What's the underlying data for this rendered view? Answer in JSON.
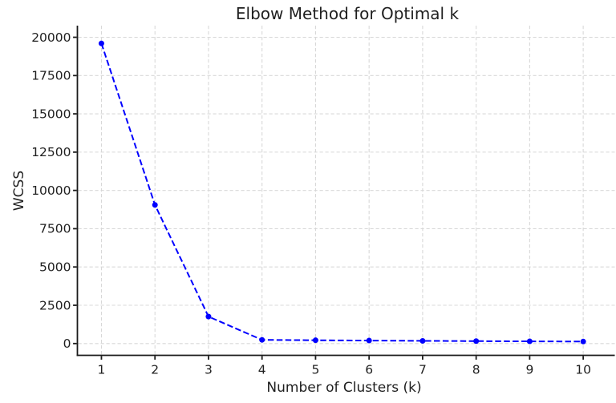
{
  "chart_data": {
    "type": "line",
    "title": "Elbow Method for Optimal k",
    "xlabel": "Number of Clusters (k)",
    "ylabel": "WCSS",
    "series_name": "WCSS",
    "x": [
      1,
      2,
      3,
      4,
      5,
      6,
      7,
      8,
      9,
      10
    ],
    "y": [
      19600,
      9050,
      1760,
      240,
      215,
      195,
      175,
      158,
      143,
      130
    ],
    "xlim": [
      0.551,
      10.59
    ],
    "ylim": [
      -770,
      20760
    ],
    "x_ticks": {
      "values": [
        1,
        2,
        3,
        4,
        5,
        6,
        7,
        8,
        9,
        10
      ],
      "labels": [
        "1",
        "2",
        "3",
        "4",
        "5",
        "6",
        "7",
        "8",
        "9",
        "10"
      ]
    },
    "y_ticks": {
      "values": [
        0,
        2500,
        5000,
        7500,
        10000,
        12500,
        15000,
        17500,
        20000
      ],
      "labels": [
        "0",
        "2500",
        "5000",
        "7500",
        "10000",
        "12500",
        "15000",
        "17500",
        "20000"
      ]
    },
    "grid": true,
    "legend": false,
    "line_style": "dashed",
    "marker": "circle",
    "style": {
      "line_color": "#0000ff",
      "marker_color": "#0000ff",
      "grid_color": "#d8d8d8",
      "spine_color": "#1a1a1a",
      "text_color": "#1f1f1f",
      "background_color": "#ffffff"
    }
  }
}
